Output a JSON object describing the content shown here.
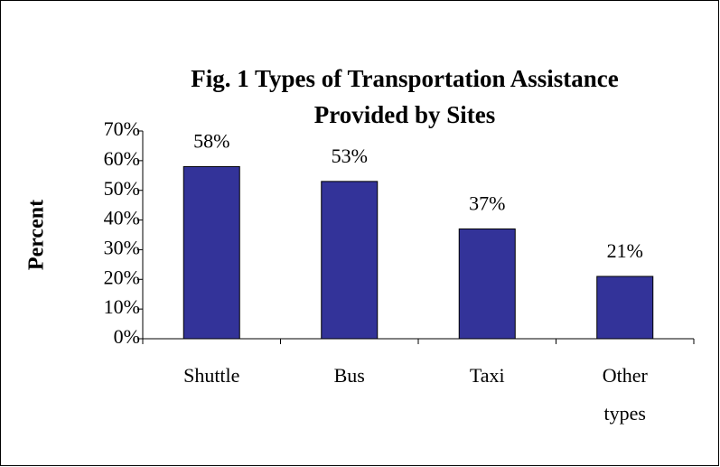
{
  "chart_data": {
    "type": "bar",
    "title": "Fig. 1 Types of Transportation Assistance Provided by Sites",
    "title_lines": [
      "Fig. 1 Types of Transportation Assistance",
      "Provided by Sites"
    ],
    "y_label": "Percent",
    "categories": [
      "Shuttle",
      "Bus",
      "Taxi",
      "Other types"
    ],
    "values": [
      58,
      53,
      37,
      21
    ],
    "value_labels": [
      "58%",
      "53%",
      "37%",
      "21%"
    ],
    "color": "#333399",
    "ylim": [
      0,
      70
    ],
    "yticks": [
      {
        "value": 0,
        "label": "0%"
      },
      {
        "value": 10,
        "label": "10%"
      },
      {
        "value": 20,
        "label": "20%"
      },
      {
        "value": 30,
        "label": "30%"
      },
      {
        "value": 40,
        "label": "40%"
      },
      {
        "value": 50,
        "label": "50%"
      },
      {
        "value": 60,
        "label": "60%"
      },
      {
        "value": 70,
        "label": "70%"
      }
    ],
    "grid": false
  }
}
